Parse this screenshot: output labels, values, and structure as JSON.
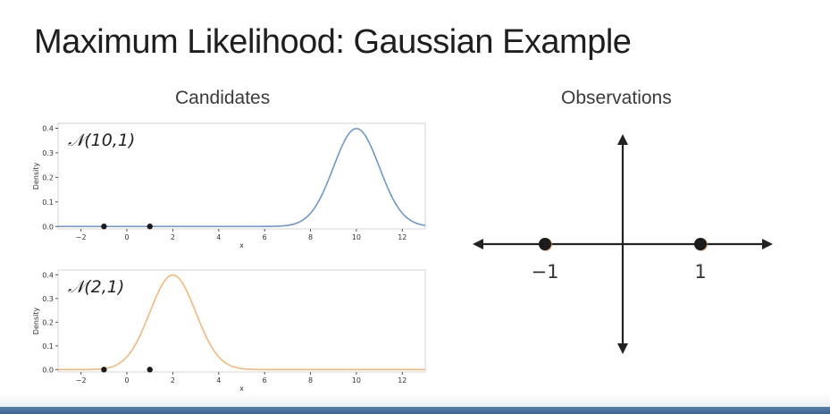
{
  "slide": {
    "title": "Maximum Likelihood: Gaussian Example"
  },
  "headings": {
    "candidates": "Candidates",
    "observations": "Observations"
  },
  "colors": {
    "blue_curve": "#6c97cd",
    "orange_curve": "#f0b97a",
    "points": "#1a1a1a",
    "axis": "#222222"
  },
  "chart_data": [
    {
      "type": "line",
      "annotation": "𝒩(10,1)",
      "xlabel": "x",
      "ylabel": "Density",
      "xlim": [
        -3,
        13
      ],
      "ylim": [
        -0.01,
        0.42
      ],
      "xticks": [
        -2,
        0,
        2,
        4,
        6,
        8,
        10,
        12
      ],
      "xtick_labels": [
        "−2",
        "0",
        "2",
        "4",
        "6",
        "8",
        "10",
        "12"
      ],
      "yticks": [
        0.0,
        0.1,
        0.2,
        0.3,
        0.4
      ],
      "ytick_labels": [
        "0.0",
        "0.1",
        "0.2",
        "0.3",
        "0.4"
      ],
      "grid": false,
      "series": [
        {
          "distribution": "normal",
          "mean": 10,
          "sd": 1,
          "color": "#6c97cd"
        }
      ],
      "points": [
        {
          "x": -1,
          "y": 0
        },
        {
          "x": 1,
          "y": 0
        }
      ]
    },
    {
      "type": "line",
      "annotation": "𝒩(2,1)",
      "xlabel": "x",
      "ylabel": "Density",
      "xlim": [
        -3,
        13
      ],
      "ylim": [
        -0.01,
        0.42
      ],
      "xticks": [
        -2,
        0,
        2,
        4,
        6,
        8,
        10,
        12
      ],
      "xtick_labels": [
        "−2",
        "0",
        "2",
        "4",
        "6",
        "8",
        "10",
        "12"
      ],
      "yticks": [
        0.0,
        0.1,
        0.2,
        0.3,
        0.4
      ],
      "ytick_labels": [
        "0.0",
        "0.1",
        "0.2",
        "0.3",
        "0.4"
      ],
      "grid": false,
      "series": [
        {
          "distribution": "normal",
          "mean": 2,
          "sd": 1,
          "color": "#f0b97a"
        }
      ],
      "points": [
        {
          "x": -1,
          "y": 0
        },
        {
          "x": 1,
          "y": 0
        }
      ]
    }
  ],
  "observations": {
    "points": [
      {
        "value": -1,
        "label": "−1"
      },
      {
        "value": 1,
        "label": "1"
      }
    ]
  }
}
